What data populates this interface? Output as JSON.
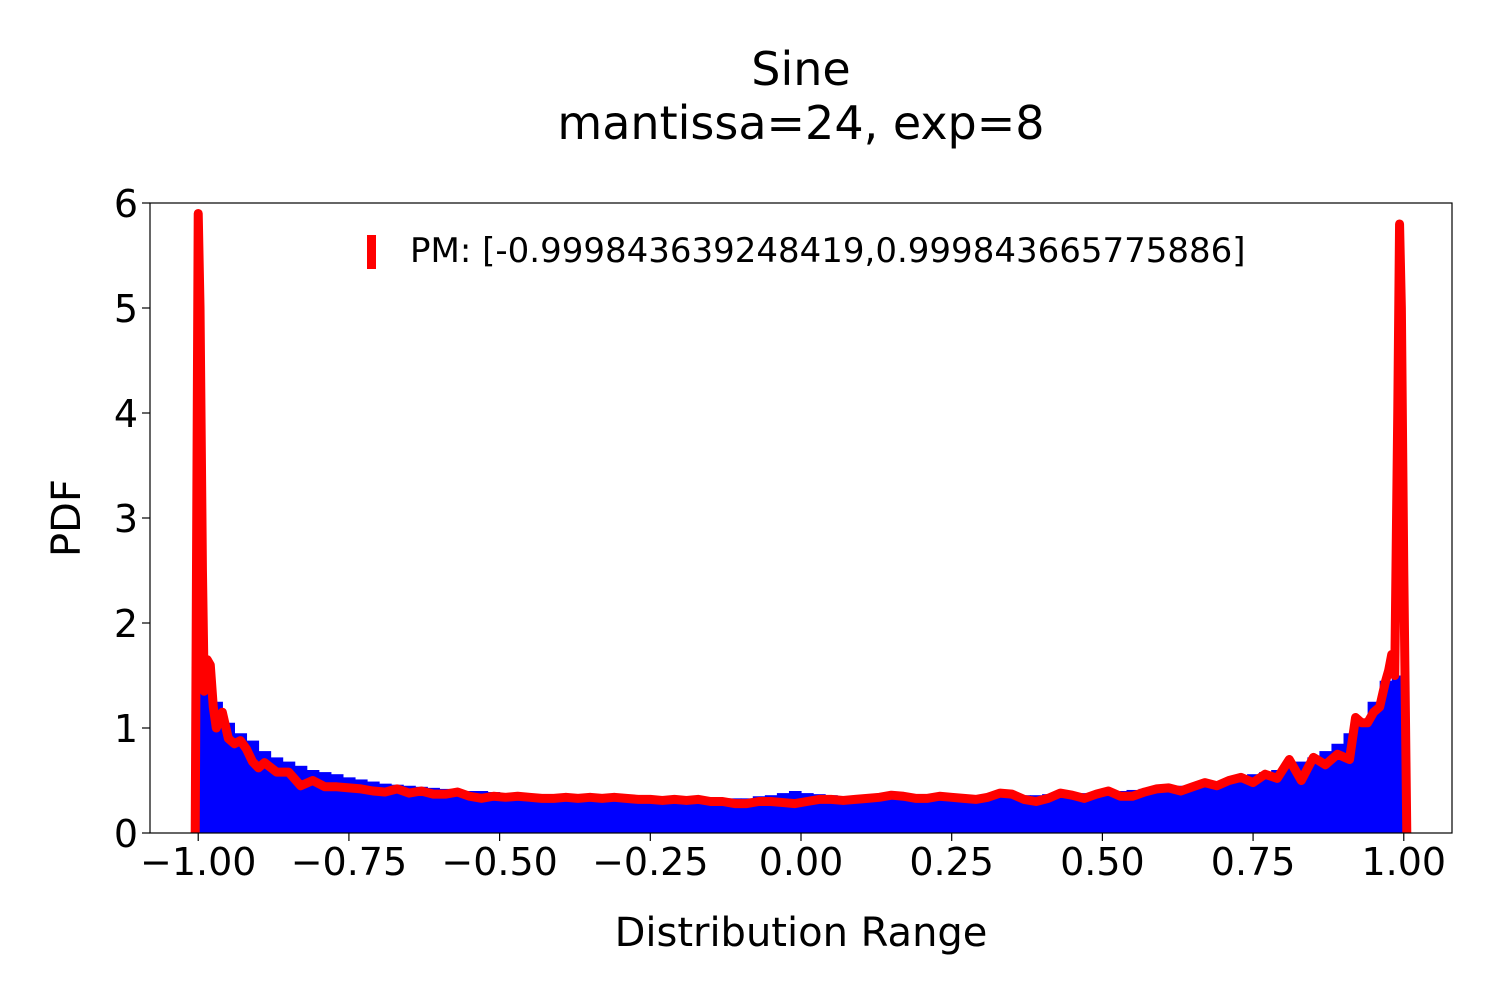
{
  "chart_data": {
    "type": "histogram-with-line",
    "title_line1": "Sine",
    "title_line2": "mantissa=24, exp=8",
    "xlabel": "Distribution Range",
    "ylabel": "PDF",
    "xlim": [
      -1.08,
      1.08
    ],
    "ylim": [
      0,
      6
    ],
    "x_ticks": [
      -1.0,
      -0.75,
      -0.5,
      -0.25,
      0.0,
      0.25,
      0.5,
      0.75,
      1.0
    ],
    "x_tick_labels": [
      "−1.00",
      "−0.75",
      "−0.50",
      "−0.25",
      "0.00",
      "0.25",
      "0.50",
      "0.75",
      "1.00"
    ],
    "y_ticks": [
      0,
      1,
      2,
      3,
      4,
      5,
      6
    ],
    "y_tick_labels": [
      "0",
      "1",
      "2",
      "3",
      "4",
      "5",
      "6"
    ],
    "legend": {
      "position": "top-center",
      "label": "PM: [-0.999843639248419,0.999843665775886]",
      "color": "#ff0000"
    },
    "series": [
      {
        "kind": "histogram",
        "color": "#0000ff",
        "x": [
          -0.99,
          -0.97,
          -0.95,
          -0.93,
          -0.91,
          -0.89,
          -0.87,
          -0.85,
          -0.83,
          -0.81,
          -0.79,
          -0.77,
          -0.75,
          -0.73,
          -0.71,
          -0.69,
          -0.67,
          -0.65,
          -0.63,
          -0.61,
          -0.59,
          -0.57,
          -0.55,
          -0.53,
          -0.51,
          -0.49,
          -0.47,
          -0.45,
          -0.43,
          -0.41,
          -0.39,
          -0.37,
          -0.35,
          -0.33,
          -0.31,
          -0.29,
          -0.27,
          -0.25,
          -0.23,
          -0.21,
          -0.19,
          -0.17,
          -0.15,
          -0.13,
          -0.11,
          -0.09,
          -0.07,
          -0.05,
          -0.03,
          -0.01,
          0.01,
          0.03,
          0.05,
          0.07,
          0.09,
          0.11,
          0.13,
          0.15,
          0.17,
          0.19,
          0.21,
          0.23,
          0.25,
          0.27,
          0.29,
          0.31,
          0.33,
          0.35,
          0.37,
          0.39,
          0.41,
          0.43,
          0.45,
          0.47,
          0.49,
          0.51,
          0.53,
          0.55,
          0.57,
          0.59,
          0.61,
          0.63,
          0.65,
          0.67,
          0.69,
          0.71,
          0.73,
          0.75,
          0.77,
          0.79,
          0.81,
          0.83,
          0.85,
          0.87,
          0.89,
          0.91,
          0.93,
          0.95,
          0.97,
          0.99
        ],
        "values": [
          1.35,
          1.25,
          1.05,
          0.95,
          0.88,
          0.78,
          0.72,
          0.68,
          0.64,
          0.6,
          0.58,
          0.56,
          0.53,
          0.51,
          0.49,
          0.47,
          0.46,
          0.45,
          0.44,
          0.43,
          0.42,
          0.41,
          0.4,
          0.4,
          0.39,
          0.38,
          0.38,
          0.37,
          0.37,
          0.36,
          0.36,
          0.35,
          0.35,
          0.35,
          0.34,
          0.34,
          0.34,
          0.33,
          0.33,
          0.33,
          0.33,
          0.33,
          0.33,
          0.33,
          0.33,
          0.33,
          0.35,
          0.36,
          0.38,
          0.4,
          0.38,
          0.37,
          0.36,
          0.35,
          0.34,
          0.34,
          0.33,
          0.33,
          0.33,
          0.33,
          0.33,
          0.33,
          0.34,
          0.34,
          0.34,
          0.35,
          0.35,
          0.35,
          0.36,
          0.36,
          0.37,
          0.37,
          0.38,
          0.38,
          0.39,
          0.4,
          0.4,
          0.41,
          0.42,
          0.43,
          0.44,
          0.45,
          0.46,
          0.47,
          0.49,
          0.51,
          0.53,
          0.56,
          0.58,
          0.6,
          0.64,
          0.68,
          0.72,
          0.78,
          0.85,
          0.95,
          1.05,
          1.25,
          1.45,
          1.5
        ]
      },
      {
        "kind": "line",
        "name": "PM: [-0.999843639248419,0.999843665775886]",
        "color": "#ff0000",
        "x": [
          -1.005,
          -1.0,
          -0.997,
          -0.993,
          -0.99,
          -0.985,
          -0.98,
          -0.975,
          -0.97,
          -0.96,
          -0.95,
          -0.94,
          -0.93,
          -0.92,
          -0.91,
          -0.9,
          -0.89,
          -0.87,
          -0.85,
          -0.83,
          -0.81,
          -0.79,
          -0.77,
          -0.75,
          -0.73,
          -0.71,
          -0.69,
          -0.67,
          -0.65,
          -0.63,
          -0.61,
          -0.59,
          -0.57,
          -0.55,
          -0.53,
          -0.51,
          -0.49,
          -0.47,
          -0.45,
          -0.43,
          -0.41,
          -0.39,
          -0.37,
          -0.35,
          -0.33,
          -0.31,
          -0.29,
          -0.27,
          -0.25,
          -0.23,
          -0.21,
          -0.19,
          -0.17,
          -0.15,
          -0.13,
          -0.11,
          -0.09,
          -0.07,
          -0.05,
          -0.03,
          -0.01,
          0.01,
          0.03,
          0.05,
          0.07,
          0.09,
          0.11,
          0.13,
          0.15,
          0.17,
          0.19,
          0.21,
          0.23,
          0.25,
          0.27,
          0.29,
          0.31,
          0.33,
          0.35,
          0.37,
          0.39,
          0.41,
          0.43,
          0.45,
          0.47,
          0.49,
          0.51,
          0.53,
          0.55,
          0.57,
          0.59,
          0.61,
          0.63,
          0.65,
          0.67,
          0.69,
          0.71,
          0.73,
          0.75,
          0.77,
          0.79,
          0.81,
          0.83,
          0.85,
          0.87,
          0.89,
          0.91,
          0.92,
          0.93,
          0.94,
          0.95,
          0.96,
          0.97,
          0.975,
          0.98,
          0.985,
          0.99,
          0.993,
          0.996,
          1.0,
          1.005
        ],
        "values": [
          0.0,
          5.9,
          5.0,
          2.5,
          1.35,
          1.65,
          1.6,
          1.2,
          1.0,
          1.15,
          0.9,
          0.85,
          0.88,
          0.8,
          0.68,
          0.62,
          0.67,
          0.58,
          0.58,
          0.45,
          0.5,
          0.44,
          0.44,
          0.43,
          0.42,
          0.4,
          0.39,
          0.42,
          0.38,
          0.4,
          0.37,
          0.37,
          0.39,
          0.35,
          0.33,
          0.35,
          0.34,
          0.35,
          0.34,
          0.33,
          0.33,
          0.34,
          0.33,
          0.34,
          0.33,
          0.34,
          0.33,
          0.32,
          0.32,
          0.31,
          0.32,
          0.31,
          0.32,
          0.3,
          0.3,
          0.28,
          0.28,
          0.3,
          0.3,
          0.29,
          0.28,
          0.3,
          0.32,
          0.32,
          0.31,
          0.32,
          0.33,
          0.34,
          0.36,
          0.35,
          0.33,
          0.33,
          0.35,
          0.34,
          0.33,
          0.32,
          0.34,
          0.38,
          0.37,
          0.32,
          0.3,
          0.33,
          0.38,
          0.36,
          0.33,
          0.37,
          0.4,
          0.35,
          0.35,
          0.39,
          0.42,
          0.43,
          0.4,
          0.44,
          0.48,
          0.45,
          0.5,
          0.53,
          0.48,
          0.56,
          0.52,
          0.7,
          0.5,
          0.72,
          0.65,
          0.75,
          0.7,
          1.1,
          1.05,
          1.05,
          1.15,
          1.2,
          1.45,
          1.55,
          1.7,
          1.5,
          4.0,
          5.8,
          5.0,
          2.5,
          0.0
        ]
      }
    ],
    "grid": false
  }
}
